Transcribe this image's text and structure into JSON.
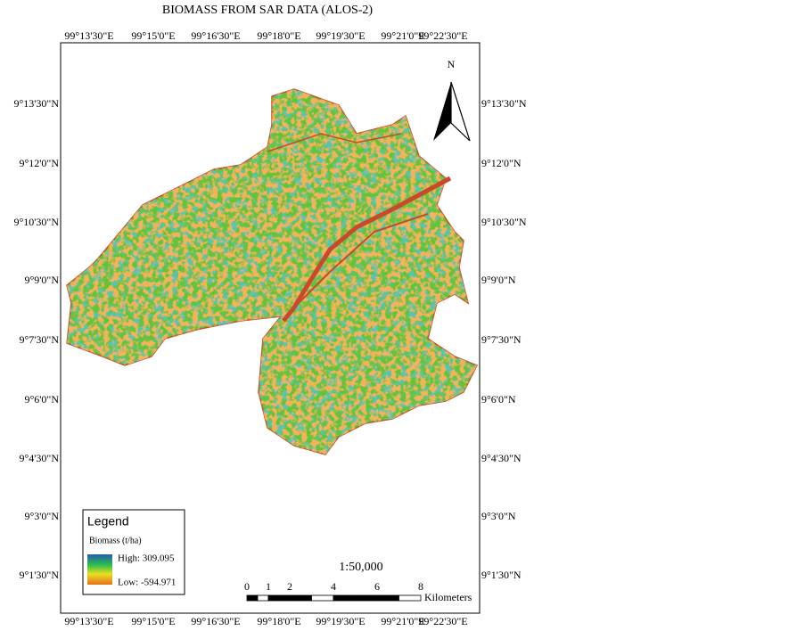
{
  "title": "BIOMASS FROM SAR DATA (ALOS-2)",
  "longitude_labels": [
    "99°13'30\"E",
    "99°15'0\"E",
    "99°16'30\"E",
    "99°18'0\"E",
    "99°19'30\"E",
    "99°21'0\"E",
    "99°22'30\"E"
  ],
  "latitude_labels": [
    "9°13'30\"N",
    "9°12'0\"N",
    "9°10'30\"N",
    "9°9'0\"N",
    "9°7'30\"N",
    "9°6'0\"N",
    "9°4'30\"N",
    "9°3'0\"N",
    "9°1'30\"N"
  ],
  "north_arrow": "N",
  "legend": {
    "title": "Legend",
    "subtitle": "Biomass (t/ha)",
    "high": "High: 309.095",
    "low": "Low: -594.971"
  },
  "scale": {
    "ratio": "1:50,000",
    "ticks": [
      "0",
      "1",
      "2",
      "4",
      "6",
      "8"
    ],
    "unit": "Kilometers"
  }
}
